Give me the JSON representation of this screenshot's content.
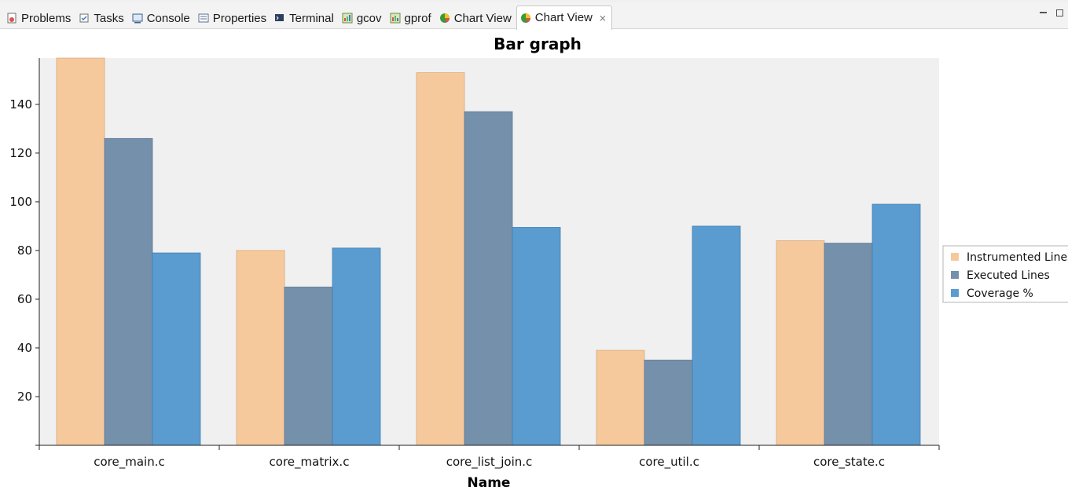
{
  "tabs": [
    {
      "label": "Problems",
      "icon": "problems-icon",
      "active": false
    },
    {
      "label": "Tasks",
      "icon": "tasks-icon",
      "active": false
    },
    {
      "label": "Console",
      "icon": "console-icon",
      "active": false
    },
    {
      "label": "Properties",
      "icon": "properties-icon",
      "active": false
    },
    {
      "label": "Terminal",
      "icon": "terminal-icon",
      "active": false
    },
    {
      "label": "gcov",
      "icon": "gcov-icon",
      "active": false
    },
    {
      "label": "gprof",
      "icon": "gprof-icon",
      "active": false
    },
    {
      "label": "Chart View",
      "icon": "chart-view-icon",
      "active": false
    },
    {
      "label": "Chart View",
      "icon": "chart-view-icon",
      "active": true
    }
  ],
  "colors": {
    "instrumented": "#f6c99d",
    "executed": "#7590aa",
    "coverage": "#5a9cd0",
    "plot_background": "#f0f0f0"
  },
  "chart_data": {
    "type": "bar",
    "title": "Bar graph",
    "xlabel": "Name",
    "ylabel": "",
    "categories": [
      "core_main.c",
      "core_matrix.c",
      "core_list_join.c",
      "core_util.c",
      "core_state.c"
    ],
    "series": [
      {
        "name": "Instrumented Lines",
        "values": [
          159,
          80,
          153,
          39,
          84
        ]
      },
      {
        "name": "Executed Lines",
        "values": [
          126,
          65,
          137,
          35,
          83
        ]
      },
      {
        "name": "Coverage %",
        "values": [
          79,
          81,
          89.5,
          90,
          99
        ]
      }
    ],
    "ylim": [
      0,
      159
    ],
    "yticks": [
      20,
      40,
      60,
      80,
      100,
      120,
      140
    ],
    "grid": false,
    "legend_position": "right"
  }
}
